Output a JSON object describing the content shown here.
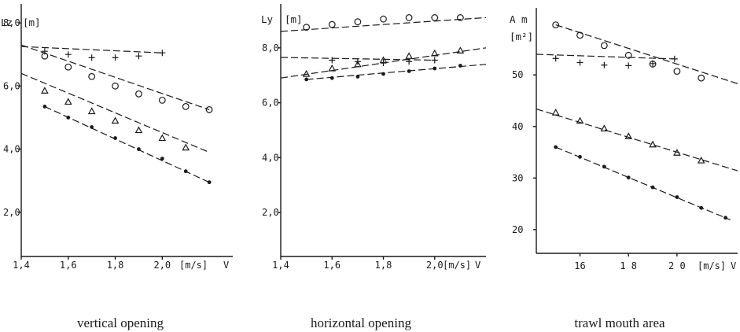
{
  "chart_data": [
    {
      "id": "vertical",
      "type": "line",
      "title": "",
      "caption": "vertical opening",
      "ylabel": "Lz",
      "yunit": "[m]",
      "xlabel": "V",
      "xunit": "[m/s]",
      "xlim": [
        1.4,
        2.3
      ],
      "ylim": [
        0.6,
        8.6
      ],
      "xticks": [
        {
          "value": 1.4,
          "label": "1,4"
        },
        {
          "value": 1.6,
          "label": "1,6"
        },
        {
          "value": 1.8,
          "label": "1,8"
        },
        {
          "value": 2.0,
          "label": "2,0"
        }
      ],
      "yticks": [
        {
          "value": 2.0,
          "label": "2,0"
        },
        {
          "value": 4.0,
          "label": "4,0"
        },
        {
          "value": 6.0,
          "label": "6,0"
        },
        {
          "value": 8.0,
          "label": "8,0"
        }
      ],
      "grid": false,
      "series": [
        {
          "marker": "plus",
          "x": [
            1.5,
            1.6,
            1.7,
            1.8,
            1.9,
            2.0
          ],
          "y": [
            7.1,
            7.0,
            6.9,
            6.9,
            6.95,
            7.05
          ],
          "line": [
            [
              1.4,
              7.25
            ],
            [
              2.0,
              7.05
            ]
          ]
        },
        {
          "marker": "circle",
          "x": [
            1.5,
            1.6,
            1.7,
            1.8,
            1.9,
            2.0,
            2.1,
            2.2
          ],
          "y": [
            6.95,
            6.6,
            6.3,
            6.0,
            5.75,
            5.55,
            5.35,
            5.25
          ],
          "line": [
            [
              1.4,
              7.3
            ],
            [
              2.2,
              5.25
            ]
          ]
        },
        {
          "marker": "triangle",
          "x": [
            1.5,
            1.6,
            1.7,
            1.8,
            1.9,
            2.0,
            2.1
          ],
          "y": [
            5.85,
            5.5,
            5.2,
            4.9,
            4.6,
            4.35,
            4.05
          ],
          "line": [
            [
              1.4,
              6.4
            ],
            [
              2.2,
              3.9
            ]
          ]
        },
        {
          "marker": "dot",
          "x": [
            1.5,
            1.6,
            1.7,
            1.8,
            1.9,
            2.0,
            2.1,
            2.2
          ],
          "y": [
            5.35,
            5.0,
            4.7,
            4.35,
            4.0,
            3.7,
            3.3,
            2.95
          ],
          "line": [
            [
              1.5,
              5.35
            ],
            [
              2.2,
              2.95
            ]
          ]
        }
      ]
    },
    {
      "id": "horizontal",
      "type": "line",
      "title": "",
      "caption": "horizontal opening",
      "ylabel": "Ly",
      "yunit": "[m]",
      "xlabel": "V",
      "xunit": "[m/s]",
      "xlim": [
        1.4,
        2.2
      ],
      "ylim": [
        0.4,
        9.6
      ],
      "xticks": [
        {
          "value": 1.4,
          "label": "1,4"
        },
        {
          "value": 1.6,
          "label": "1,6"
        },
        {
          "value": 1.8,
          "label": "1,8"
        },
        {
          "value": 2.0,
          "label": "2,0"
        }
      ],
      "yticks": [
        {
          "value": 2.0,
          "label": "2,0"
        },
        {
          "value": 4.0,
          "label": "4,0"
        },
        {
          "value": 6.0,
          "label": "6,0"
        },
        {
          "value": 8.0,
          "label": "8,0"
        }
      ],
      "grid": false,
      "series": [
        {
          "marker": "circle",
          "x": [
            1.5,
            1.6,
            1.7,
            1.8,
            1.9,
            2.0,
            2.1
          ],
          "y": [
            8.75,
            8.85,
            8.95,
            9.05,
            9.1,
            9.1,
            9.1
          ],
          "line": [
            [
              1.4,
              8.6
            ],
            [
              2.2,
              9.1
            ]
          ]
        },
        {
          "marker": "plus",
          "x": [
            1.6,
            1.7,
            1.8,
            1.9,
            2.0
          ],
          "y": [
            7.55,
            7.5,
            7.45,
            7.5,
            7.55
          ],
          "line": [
            [
              1.4,
              7.65
            ],
            [
              2.0,
              7.55
            ]
          ]
        },
        {
          "marker": "triangle",
          "x": [
            1.5,
            1.6,
            1.7,
            1.8,
            1.9,
            2.0,
            2.1
          ],
          "y": [
            7.05,
            7.25,
            7.4,
            7.55,
            7.7,
            7.8,
            7.9
          ],
          "line": [
            [
              1.4,
              6.9
            ],
            [
              2.2,
              8.0
            ]
          ]
        },
        {
          "marker": "dot",
          "x": [
            1.5,
            1.6,
            1.7,
            1.8,
            1.9,
            2.0,
            2.1
          ],
          "y": [
            6.85,
            6.9,
            6.95,
            7.05,
            7.15,
            7.25,
            7.35
          ],
          "line": [
            [
              1.5,
              6.85
            ],
            [
              2.2,
              7.4
            ]
          ]
        }
      ]
    },
    {
      "id": "area",
      "type": "line",
      "title": "",
      "caption": "trawl mouth area",
      "ylabel": "A m",
      "yunit": "[m²]",
      "xlabel": "V",
      "xunit": "[m/s]",
      "xlim": [
        1.42,
        2.25
      ],
      "ylim": [
        15.4,
        63
      ],
      "xticks": [
        {
          "value": 1.6,
          "label": "16"
        },
        {
          "value": 1.8,
          "label": "1 8"
        },
        {
          "value": 2.0,
          "label": "2 0"
        }
      ],
      "yticks": [
        {
          "value": 20,
          "label": "20"
        },
        {
          "value": 30,
          "label": "30"
        },
        {
          "value": 40,
          "label": "40"
        },
        {
          "value": 50,
          "label": "50"
        }
      ],
      "grid": false,
      "series": [
        {
          "marker": "circle",
          "x": [
            1.5,
            1.6,
            1.7,
            1.8,
            1.9,
            2.0,
            2.1
          ],
          "y": [
            59.7,
            57.7,
            55.7,
            53.8,
            52.1,
            50.7,
            49.4
          ],
          "line": [
            [
              1.5,
              59.7
            ],
            [
              2.25,
              48.3
            ]
          ]
        },
        {
          "marker": "plus",
          "x": [
            1.5,
            1.6,
            1.7,
            1.8,
            1.9,
            1.99
          ],
          "y": [
            53.2,
            52.4,
            51.9,
            51.8,
            52.2,
            53.1
          ],
          "line": [
            [
              1.42,
              54.0
            ],
            [
              1.99,
              53.1
            ]
          ]
        },
        {
          "marker": "triangle",
          "x": [
            1.5,
            1.6,
            1.7,
            1.8,
            1.9,
            2.0,
            2.1
          ],
          "y": [
            42.7,
            41.1,
            39.6,
            38.1,
            36.5,
            34.9,
            33.4
          ],
          "line": [
            [
              1.42,
              43.4
            ],
            [
              2.25,
              31.4
            ]
          ]
        },
        {
          "marker": "dot",
          "x": [
            1.5,
            1.6,
            1.7,
            1.8,
            1.9,
            2.0,
            2.1,
            2.2
          ],
          "y": [
            36.0,
            34.1,
            32.2,
            30.1,
            28.2,
            26.3,
            24.2,
            22.3
          ],
          "line": [
            [
              1.5,
              36.0
            ],
            [
              2.22,
              21.9
            ]
          ]
        }
      ]
    }
  ]
}
